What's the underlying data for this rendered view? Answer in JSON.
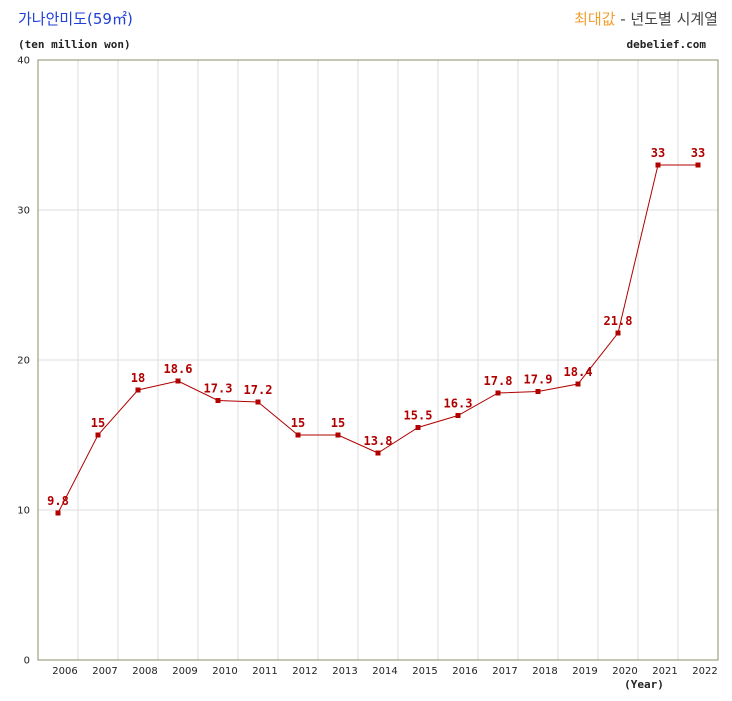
{
  "header": {
    "title": "가나안미도(59㎡)",
    "subtitle_accent": "최대값",
    "subtitle_rest": " - 년도별 시계열",
    "unit": "(ten million won)",
    "site": "debelief.com"
  },
  "chart_data": {
    "type": "line",
    "title": "가나안미도(59㎡)",
    "subtitle": "최대값 - 년도별 시계열",
    "xlabel": "(Year)",
    "ylabel": "(ten million won)",
    "ylim": [
      0,
      40
    ],
    "yticks": [
      0,
      10,
      20,
      30,
      40
    ],
    "grid": true,
    "categories": [
      "2006",
      "2007",
      "2008",
      "2009",
      "2010",
      "2011",
      "2012",
      "2013",
      "2014",
      "2015",
      "2016",
      "2017",
      "2018",
      "2019",
      "2020",
      "2021",
      "2022"
    ],
    "series": [
      {
        "name": "최대값",
        "values": [
          9.8,
          15,
          18,
          18.6,
          17.3,
          17.2,
          15,
          15,
          13.8,
          15.5,
          16.3,
          17.8,
          17.9,
          18.4,
          21.8,
          33,
          33
        ],
        "labels": [
          "9.8",
          "15",
          "18",
          "18.6",
          "17.3",
          "17.2",
          "15",
          "15",
          "13.8",
          "15.5",
          "16.3",
          "17.8",
          "17.9",
          "18.4",
          "21.8",
          "33",
          "33"
        ]
      }
    ],
    "colors": {
      "line": "#b00000",
      "grid": "#dddddd",
      "frame": "#8c8c6a"
    }
  }
}
